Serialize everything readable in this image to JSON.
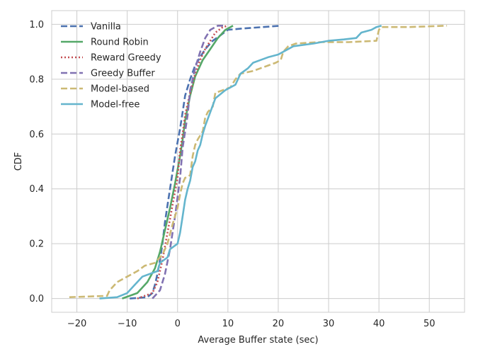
{
  "chart_data": {
    "type": "line",
    "xlabel": "Average Buffer state (sec)",
    "ylabel": "CDF",
    "xlim": [
      -25,
      57
    ],
    "ylim": [
      -0.05,
      1.05
    ],
    "xticks": [
      -20,
      -10,
      0,
      10,
      20,
      30,
      40,
      50
    ],
    "xtick_labels": [
      "−20",
      "−10",
      "0",
      "10",
      "20",
      "30",
      "40",
      "50"
    ],
    "yticks": [
      0.0,
      0.2,
      0.4,
      0.6,
      0.8,
      1.0
    ],
    "ytick_labels": [
      "0.0",
      "0.2",
      "0.4",
      "0.6",
      "0.8",
      "1.0"
    ],
    "grid": true,
    "legend_position": "upper-left",
    "series": [
      {
        "name": "Vanilla",
        "color": "#4c72b0",
        "dash": "dashed",
        "points": [
          [
            -9.5,
            0.0
          ],
          [
            -6,
            0.005
          ],
          [
            -5,
            0.02
          ],
          [
            -4.5,
            0.05
          ],
          [
            -4,
            0.09
          ],
          [
            -3.5,
            0.14
          ],
          [
            -3,
            0.2
          ],
          [
            -2.5,
            0.28
          ],
          [
            -2,
            0.34
          ],
          [
            -1.5,
            0.4
          ],
          [
            -1,
            0.46
          ],
          [
            -0.5,
            0.52
          ],
          [
            0,
            0.57
          ],
          [
            0.5,
            0.62
          ],
          [
            1,
            0.68
          ],
          [
            1.5,
            0.74
          ],
          [
            2.5,
            0.8
          ],
          [
            3.5,
            0.85
          ],
          [
            4.5,
            0.88
          ],
          [
            5.5,
            0.91
          ],
          [
            7,
            0.94
          ],
          [
            8.5,
            0.96
          ],
          [
            10,
            0.98
          ],
          [
            13,
            0.985
          ],
          [
            17,
            0.99
          ],
          [
            20.5,
            0.995
          ]
        ]
      },
      {
        "name": "Round Robin",
        "color": "#55a868",
        "dash": "solid",
        "points": [
          [
            -11,
            0.0
          ],
          [
            -8,
            0.02
          ],
          [
            -6,
            0.06
          ],
          [
            -4.5,
            0.11
          ],
          [
            -3.5,
            0.17
          ],
          [
            -2.5,
            0.25
          ],
          [
            -1.5,
            0.33
          ],
          [
            -0.5,
            0.42
          ],
          [
            0.5,
            0.52
          ],
          [
            1,
            0.58
          ],
          [
            1.5,
            0.65
          ],
          [
            2.5,
            0.74
          ],
          [
            3.5,
            0.81
          ],
          [
            5,
            0.87
          ],
          [
            6.5,
            0.91
          ],
          [
            8,
            0.95
          ],
          [
            9.5,
            0.98
          ],
          [
            11,
            0.995
          ]
        ]
      },
      {
        "name": "Reward Greedy",
        "color": "#c44e52",
        "dash": "dotted",
        "points": [
          [
            -8,
            0.0
          ],
          [
            -5,
            0.02
          ],
          [
            -4,
            0.06
          ],
          [
            -3,
            0.14
          ],
          [
            -2,
            0.24
          ],
          [
            -1,
            0.34
          ],
          [
            0,
            0.44
          ],
          [
            0.5,
            0.54
          ],
          [
            1,
            0.6
          ],
          [
            1.5,
            0.67
          ],
          [
            2.5,
            0.75
          ],
          [
            3.5,
            0.82
          ],
          [
            4.5,
            0.87
          ],
          [
            5.5,
            0.91
          ],
          [
            6.5,
            0.94
          ],
          [
            7.5,
            0.97
          ],
          [
            9,
            0.99
          ],
          [
            10,
            0.995
          ]
        ]
      },
      {
        "name": "Greedy Buffer",
        "color": "#8172b2",
        "dash": "dashed",
        "points": [
          [
            -5,
            0.0
          ],
          [
            -3.5,
            0.03
          ],
          [
            -2.5,
            0.09
          ],
          [
            -1.5,
            0.18
          ],
          [
            -0.5,
            0.3
          ],
          [
            0.5,
            0.44
          ],
          [
            1,
            0.55
          ],
          [
            2,
            0.67
          ],
          [
            2.5,
            0.76
          ],
          [
            3.5,
            0.84
          ],
          [
            4.5,
            0.9
          ],
          [
            5.5,
            0.95
          ],
          [
            6.5,
            0.98
          ],
          [
            8,
            0.995
          ],
          [
            9.5,
            0.995
          ]
        ]
      },
      {
        "name": "Model-based",
        "color": "#ccb974",
        "dash": "dashed",
        "points": [
          [
            -21.5,
            0.005
          ],
          [
            -14,
            0.01
          ],
          [
            -13.5,
            0.03
          ],
          [
            -12,
            0.06
          ],
          [
            -10,
            0.08
          ],
          [
            -8,
            0.1
          ],
          [
            -6.5,
            0.12
          ],
          [
            -4.5,
            0.13
          ],
          [
            -3,
            0.16
          ],
          [
            -2,
            0.2
          ],
          [
            -1,
            0.27
          ],
          [
            0,
            0.33
          ],
          [
            0.5,
            0.38
          ],
          [
            1,
            0.42
          ],
          [
            1.5,
            0.44
          ],
          [
            2.5,
            0.45
          ],
          [
            3,
            0.52
          ],
          [
            3.5,
            0.56
          ],
          [
            4,
            0.58
          ],
          [
            5,
            0.61
          ],
          [
            5.5,
            0.66
          ],
          [
            6,
            0.68
          ],
          [
            7,
            0.7
          ],
          [
            7.5,
            0.75
          ],
          [
            9,
            0.76
          ],
          [
            10.5,
            0.77
          ],
          [
            11.5,
            0.8
          ],
          [
            12.5,
            0.82
          ],
          [
            15,
            0.83
          ],
          [
            16.5,
            0.84
          ],
          [
            18,
            0.85
          ],
          [
            19.5,
            0.86
          ],
          [
            20.5,
            0.87
          ],
          [
            21,
            0.9
          ],
          [
            22,
            0.92
          ],
          [
            23.5,
            0.93
          ],
          [
            28,
            0.935
          ],
          [
            34,
            0.935
          ],
          [
            39.5,
            0.94
          ],
          [
            40,
            0.98
          ],
          [
            40.5,
            0.99
          ],
          [
            46,
            0.99
          ],
          [
            53.5,
            0.995
          ]
        ]
      },
      {
        "name": "Model-free",
        "color": "#64b5cd",
        "dash": "solid",
        "points": [
          [
            -15.5,
            0.0
          ],
          [
            -12,
            0.005
          ],
          [
            -10,
            0.02
          ],
          [
            -8.5,
            0.05
          ],
          [
            -7,
            0.08
          ],
          [
            -4,
            0.1
          ],
          [
            -3.5,
            0.13
          ],
          [
            -2,
            0.15
          ],
          [
            -1.5,
            0.18
          ],
          [
            0,
            0.2
          ],
          [
            0.5,
            0.24
          ],
          [
            1,
            0.3
          ],
          [
            1.5,
            0.36
          ],
          [
            2,
            0.4
          ],
          [
            2.5,
            0.43
          ],
          [
            3,
            0.48
          ],
          [
            3.5,
            0.5
          ],
          [
            4,
            0.54
          ],
          [
            4.5,
            0.56
          ],
          [
            5,
            0.6
          ],
          [
            5.5,
            0.63
          ],
          [
            6.5,
            0.68
          ],
          [
            7.5,
            0.73
          ],
          [
            9.5,
            0.76
          ],
          [
            11.5,
            0.78
          ],
          [
            12.5,
            0.82
          ],
          [
            14,
            0.84
          ],
          [
            15,
            0.86
          ],
          [
            16.5,
            0.87
          ],
          [
            18,
            0.88
          ],
          [
            20,
            0.89
          ],
          [
            21,
            0.9
          ],
          [
            23,
            0.92
          ],
          [
            27,
            0.93
          ],
          [
            30,
            0.94
          ],
          [
            33,
            0.945
          ],
          [
            35.5,
            0.95
          ],
          [
            36.5,
            0.97
          ],
          [
            38.5,
            0.98
          ],
          [
            39.5,
            0.99
          ],
          [
            40.5,
            0.995
          ]
        ]
      }
    ]
  }
}
